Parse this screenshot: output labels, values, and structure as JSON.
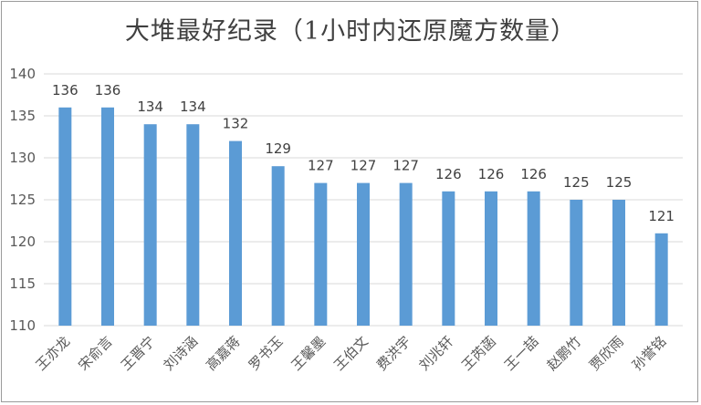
{
  "chart_data": {
    "type": "bar",
    "title": "大堆最好纪录（1小时内还原魔方数量）",
    "xlabel": "",
    "ylabel": "",
    "categories": [
      "王亦龙",
      "宋俞言",
      "王晋宁",
      "刘诗涵",
      "高嘉蒋",
      "罗书玉",
      "王馨墨",
      "王伯文",
      "费洪宇",
      "刘兆轩",
      "王芮菡",
      "王一喆",
      "赵鹏竹",
      "贾欣雨",
      "孙誉铭"
    ],
    "values": [
      136,
      136,
      134,
      134,
      132,
      129,
      127,
      127,
      127,
      126,
      126,
      126,
      125,
      125,
      121
    ],
    "ylim": [
      110,
      140
    ],
    "yticks": [
      110,
      115,
      120,
      125,
      130,
      135,
      140
    ],
    "grid": true,
    "legend": "none",
    "bar_color": "#5b9bd5",
    "grid_color": "#d9d9d9"
  }
}
